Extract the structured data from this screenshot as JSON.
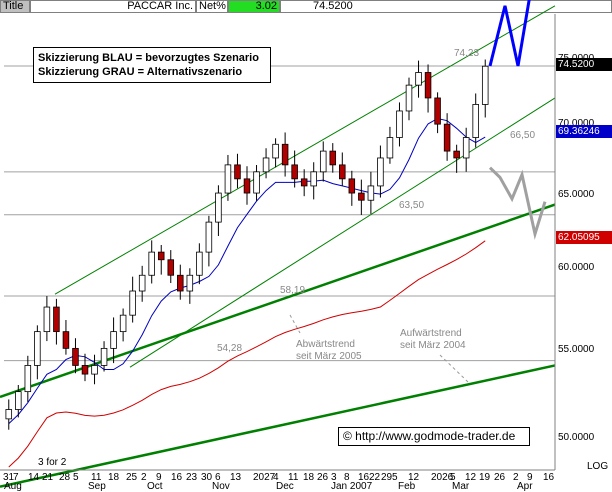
{
  "header": {
    "title_btn": "Title",
    "symbol": "PACCAR Inc.",
    "metric": "Net%",
    "net_pct": "3.02",
    "price": "74.5200"
  },
  "legend": {
    "line1": "Skizzierung BLAU = bevorzugtes Szenario",
    "line2": "Skizzierung GRAU = Alternativszenario"
  },
  "copyright": "© http://www.godmode-trader.de",
  "annotations": {
    "a1": "74,23",
    "a2": "66,50",
    "a3": "63,50",
    "a4": "58,19",
    "a5": "54,28",
    "down_trend_1": "Abwärtstrend",
    "down_trend_2": "seit März 2005",
    "up_trend_1": "Aufwärtstrend",
    "up_trend_2": "seit März 2004",
    "footnote": "3 for 2"
  },
  "y_axis": {
    "labels": [
      "75.0000",
      "70.0000",
      "65.0000",
      "60.0000",
      "55.0000",
      "50.0000"
    ],
    "log_label": "LOG"
  },
  "price_tags": {
    "last": "74.5200",
    "ma_blue": "69.36246",
    "ma_red": "62.05095"
  },
  "colors": {
    "candle": "#000000",
    "candle_down": "#b00000",
    "ma_short": "#0000c0",
    "ma_long": "#d00000",
    "trend": "#008000",
    "preferred": "#0000ff",
    "alternative": "#a0a0a0"
  },
  "x_axis": {
    "days": [
      "31",
      "7",
      "14",
      "21",
      "28",
      "5",
      "11",
      "18",
      "25",
      "2",
      "9",
      "16",
      "23",
      "30",
      "6",
      "13",
      "2027",
      "4",
      "11",
      "18",
      "26",
      "3",
      "8",
      "16",
      "22",
      "29",
      "5",
      "12",
      "2026",
      "5",
      "12",
      "19",
      "26",
      "2",
      "9",
      "16"
    ],
    "months": [
      "Aug",
      "Sep",
      "Oct",
      "Nov",
      "Dec",
      "Jan 2007",
      "Feb",
      "Mar",
      "Apr"
    ]
  },
  "chart_data": {
    "type": "candlestick",
    "title": "PACCAR Inc.",
    "y_scale": "log",
    "ylim": [
      47.5,
      79
    ],
    "approx_closes": [
      51.5,
      52.5,
      54,
      56,
      57.5,
      56,
      55,
      54,
      53.5,
      54,
      55,
      56,
      57,
      58.5,
      59.5,
      61,
      60.5,
      59.5,
      58.5,
      59.5,
      61,
      63,
      65,
      67,
      66,
      65,
      66.5,
      67.5,
      68.5,
      67,
      66,
      65.5,
      66.5,
      68,
      67,
      66,
      65,
      64.5,
      65.5,
      67.5,
      69,
      71,
      73,
      74,
      72,
      70,
      68,
      67.5,
      69,
      71.5,
      74.5
    ],
    "levels": [
      74.23,
      66.5,
      63.5,
      58.19,
      54.28
    ],
    "last_price": 74.52,
    "ma_short_last": 69.36246,
    "ma_long_last": 62.05095
  }
}
